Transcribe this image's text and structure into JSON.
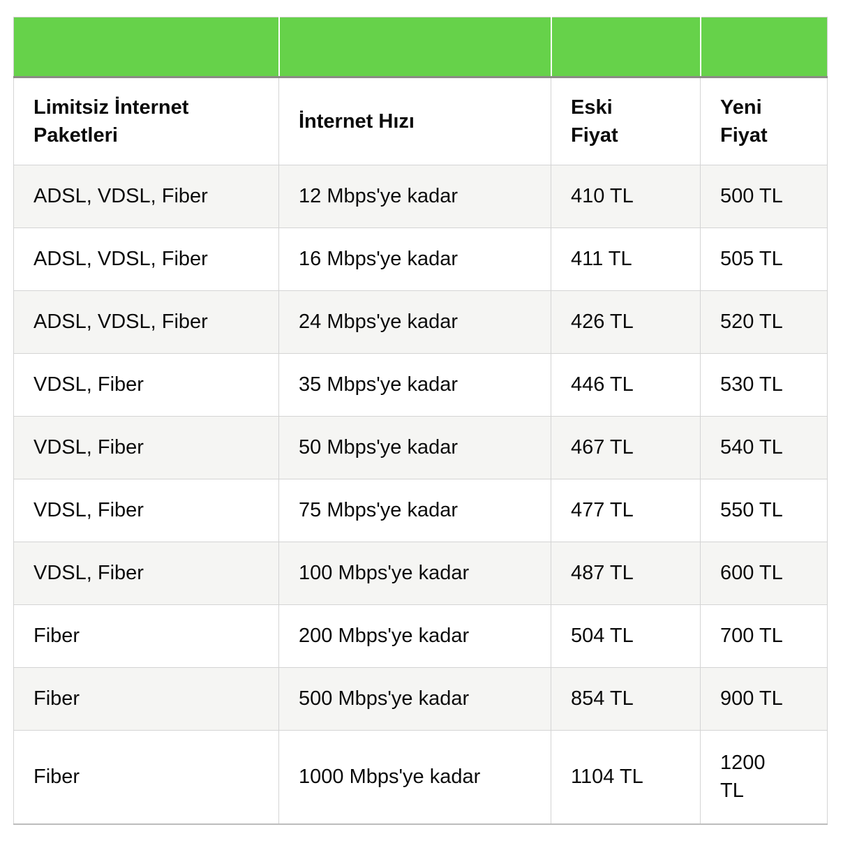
{
  "colors": {
    "header_band_green": "#66d24a",
    "band_underline_gray": "#8b8b85",
    "alt_row_gray": "#f5f5f3",
    "cell_border_gray": "#d4d4d4",
    "text_black": "#0b0b0b",
    "page_background": "#ffffff"
  },
  "chart_data": {
    "type": "table",
    "columns": [
      "Limitsiz İnternet Paketleri",
      "İnternet Hızı",
      "Eski Fiyat",
      "Yeni Fiyat"
    ],
    "rows": [
      [
        "ADSL, VDSL, Fiber",
        "12 Mbps'ye kadar",
        "410 TL",
        "500 TL"
      ],
      [
        "ADSL, VDSL, Fiber",
        "16 Mbps'ye kadar",
        "411 TL",
        "505 TL"
      ],
      [
        "ADSL, VDSL, Fiber",
        "24 Mbps'ye kadar",
        "426 TL",
        "520 TL"
      ],
      [
        "VDSL, Fiber",
        "35 Mbps'ye kadar",
        "446 TL",
        "530 TL"
      ],
      [
        "VDSL, Fiber",
        "50 Mbps'ye kadar",
        "467 TL",
        "540 TL"
      ],
      [
        "VDSL, Fiber",
        "75 Mbps'ye kadar",
        "477 TL",
        "550 TL"
      ],
      [
        "VDSL, Fiber",
        "100 Mbps'ye kadar",
        "487 TL",
        "600 TL"
      ],
      [
        "Fiber",
        "200 Mbps'ye kadar",
        "504 TL",
        "700 TL"
      ],
      [
        "Fiber",
        "500 Mbps'ye kadar",
        "854 TL",
        "900 TL"
      ],
      [
        "Fiber",
        "1000 Mbps'ye kadar",
        "1104 TL",
        "1200 TL"
      ]
    ],
    "layout_hints": {
      "header_band": "solid green, no text",
      "row_striping": "odd data rows light gray, even white",
      "grid": "light gray cell borders"
    }
  }
}
